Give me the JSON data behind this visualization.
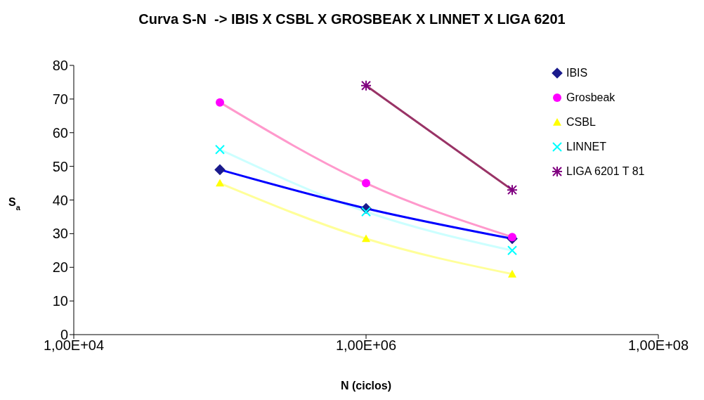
{
  "chart_data": {
    "type": "scatter",
    "title": "Curva S-N  -> IBIS X CSBL X GROSBEAK X LINNET X LIGA 6201",
    "xlabel": "N (ciclos)",
    "ylabel": "S$_{a}$",
    "categories": [
      "1,00E+04",
      null,
      "1,00E+06",
      null,
      "1,00E+08"
    ],
    "ylim": [
      0,
      80
    ],
    "yticks": [
      0,
      10,
      20,
      30,
      40,
      50,
      60,
      70,
      80
    ],
    "grid": false,
    "legend": "top right",
    "series": [
      {
        "type": "line",
        "color": "#ff99cc",
        "line_style": "solid",
        "values": [
          null,
          69,
          45,
          29,
          null
        ]
      },
      {
        "type": "line",
        "color": "#ccffff",
        "line_style": "solid",
        "values": [
          null,
          55,
          36.5,
          25,
          null
        ]
      },
      {
        "type": "line",
        "color": "#ffff99",
        "line_style": "solid",
        "values": [
          null,
          45,
          28.5,
          18,
          null
        ]
      },
      {
        "type": "line",
        "color": "#0000ff",
        "line_style": "solid",
        "values": [
          null,
          49,
          37.5,
          28.5,
          null
        ]
      },
      {
        "type": "line",
        "color": "#993366",
        "line_style": "solid",
        "values": [
          null,
          null,
          74,
          43,
          null
        ]
      },
      {
        "name": "IBIS",
        "color": "#1a1a8c",
        "marker": "diamond",
        "values": [
          null,
          49,
          37.5,
          28.5,
          null
        ]
      },
      {
        "name": "Grosbeak",
        "color": "#ff00ff",
        "marker": "circle",
        "values": [
          null,
          69,
          45,
          29,
          null
        ]
      },
      {
        "name": "CSBL",
        "color": "#ffff00",
        "marker": "triangle",
        "values": [
          null,
          45,
          28.5,
          18,
          null
        ]
      },
      {
        "name": "LINNET",
        "color": "#00ffff",
        "marker": "cross",
        "values": [
          null,
          55,
          36.5,
          25,
          null
        ]
      },
      {
        "name": "LIGA 6201 T 81",
        "color": "#800080",
        "values": [
          null,
          null,
          74,
          43,
          null
        ]
      }
    ]
  }
}
